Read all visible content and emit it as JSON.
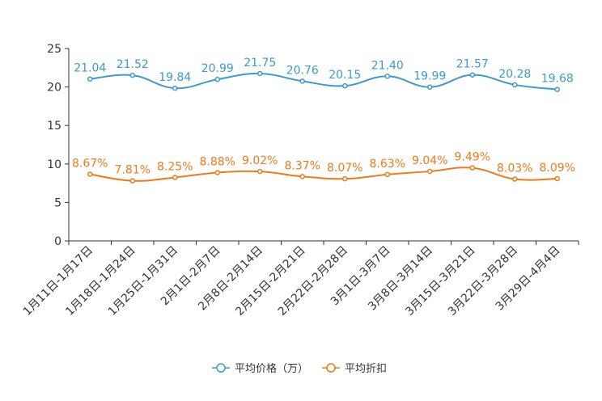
{
  "chart_data": {
    "type": "line",
    "title": "",
    "xlabel": "",
    "ylabel": "",
    "ylim": [
      0,
      25
    ],
    "yticks": [
      0,
      5,
      10,
      15,
      20,
      25
    ],
    "categories": [
      "1月11日-1月17日",
      "1月18日-1月24日",
      "1月25日-1月31日",
      "2月1日-2月7日",
      "2月8日-2月14日",
      "2月15日-2月21日",
      "2月22日-2月28日",
      "3月1日-3月7日",
      "3月8日-3月14日",
      "3月15日-3月21日",
      "3月22日-3月28日",
      "3月29日-4月4日"
    ],
    "series": [
      {
        "name": "平均价格（万）",
        "color": "#3c9ad0",
        "values": [
          21.04,
          21.52,
          19.84,
          20.99,
          21.75,
          20.76,
          20.15,
          21.4,
          19.99,
          21.57,
          20.28,
          19.68
        ],
        "labels": [
          "21.04",
          "21.52",
          "19.84",
          "20.99",
          "21.75",
          "20.76",
          "20.15",
          "21.40",
          "19.99",
          "21.57",
          "20.28",
          "19.68"
        ]
      },
      {
        "name": "平均折扣",
        "color": "#f07a1a",
        "values": [
          8.67,
          7.81,
          8.25,
          8.88,
          9.02,
          8.37,
          8.07,
          8.63,
          9.04,
          9.49,
          8.03,
          8.09
        ],
        "labels": [
          "8.67%",
          "7.81%",
          "8.25%",
          "8.88%",
          "9.02%",
          "8.37%",
          "8.07%",
          "8.63%",
          "9.04%",
          "9.49%",
          "8.03%",
          "8.09%"
        ]
      }
    ],
    "legend": "bottom-center",
    "grid": false
  }
}
